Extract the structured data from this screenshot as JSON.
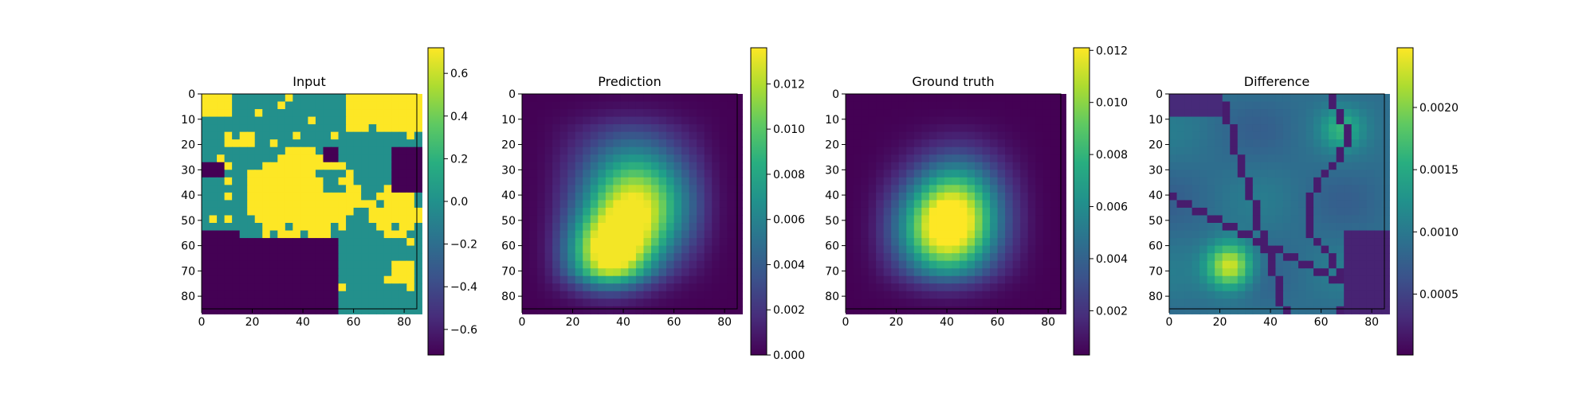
{
  "chart_data": [
    {
      "type": "heatmap",
      "title": "Input",
      "xlabel": "",
      "ylabel": "",
      "xticks": [
        0,
        20,
        40,
        60,
        80
      ],
      "yticks": [
        0,
        10,
        20,
        30,
        40,
        50,
        60,
        70,
        80
      ],
      "xlim": [
        0,
        85
      ],
      "ylim": [
        85,
        0
      ],
      "colormap": "viridis",
      "colorbar": {
        "min": -0.72,
        "max": 0.72,
        "ticks": [
          0.6,
          0.4,
          0.2,
          0.0,
          -0.2,
          -0.4,
          -0.6
        ],
        "tick_labels": [
          "0.6",
          "0.4",
          "0.2",
          "0.0",
          "−0.2",
          "−0.4",
          "−0.6"
        ]
      },
      "pattern": "categorical",
      "description_values": {
        "levels": [
          -0.72,
          0.0,
          0.72
        ]
      }
    },
    {
      "type": "heatmap",
      "title": "Prediction",
      "xlabel": "",
      "ylabel": "",
      "xticks": [
        0,
        20,
        40,
        60,
        80
      ],
      "yticks": [
        0,
        10,
        20,
        30,
        40,
        50,
        60,
        70,
        80
      ],
      "xlim": [
        0,
        85
      ],
      "ylim": [
        85,
        0
      ],
      "colormap": "viridis",
      "colorbar": {
        "min": 0.0,
        "max": 0.0136,
        "ticks": [
          0.012,
          0.01,
          0.008,
          0.006,
          0.004,
          0.002,
          0.0
        ],
        "tick_labels": [
          "0.012",
          "0.010",
          "0.008",
          "0.006",
          "0.004",
          "0.002",
          "0.000"
        ]
      },
      "pattern": "prediction"
    },
    {
      "type": "heatmap",
      "title": "Ground truth",
      "xlabel": "",
      "ylabel": "",
      "xticks": [
        0,
        20,
        40,
        60,
        80
      ],
      "yticks": [
        0,
        10,
        20,
        30,
        40,
        50,
        60,
        70,
        80
      ],
      "xlim": [
        0,
        85
      ],
      "ylim": [
        85,
        0
      ],
      "colormap": "viridis",
      "colorbar": {
        "min": 0.0003,
        "max": 0.0121,
        "ticks": [
          0.012,
          0.01,
          0.008,
          0.006,
          0.004,
          0.002
        ],
        "tick_labels": [
          "0.012",
          "0.010",
          "0.008",
          "0.006",
          "0.004",
          "0.002"
        ]
      },
      "pattern": "truth"
    },
    {
      "type": "heatmap",
      "title": "Difference",
      "xlabel": "",
      "ylabel": "",
      "xticks": [
        0,
        20,
        40,
        60,
        80
      ],
      "yticks": [
        0,
        10,
        20,
        30,
        40,
        50,
        60,
        70,
        80
      ],
      "xlim": [
        0,
        85
      ],
      "ylim": [
        85,
        0
      ],
      "colormap": "viridis",
      "colorbar": {
        "min": 1e-05,
        "max": 0.00248,
        "ticks": [
          0.002,
          0.0015,
          0.001,
          0.0005
        ],
        "tick_labels": [
          "0.0020",
          "0.0015",
          "0.0010",
          "0.0005"
        ]
      },
      "pattern": "difference"
    }
  ]
}
